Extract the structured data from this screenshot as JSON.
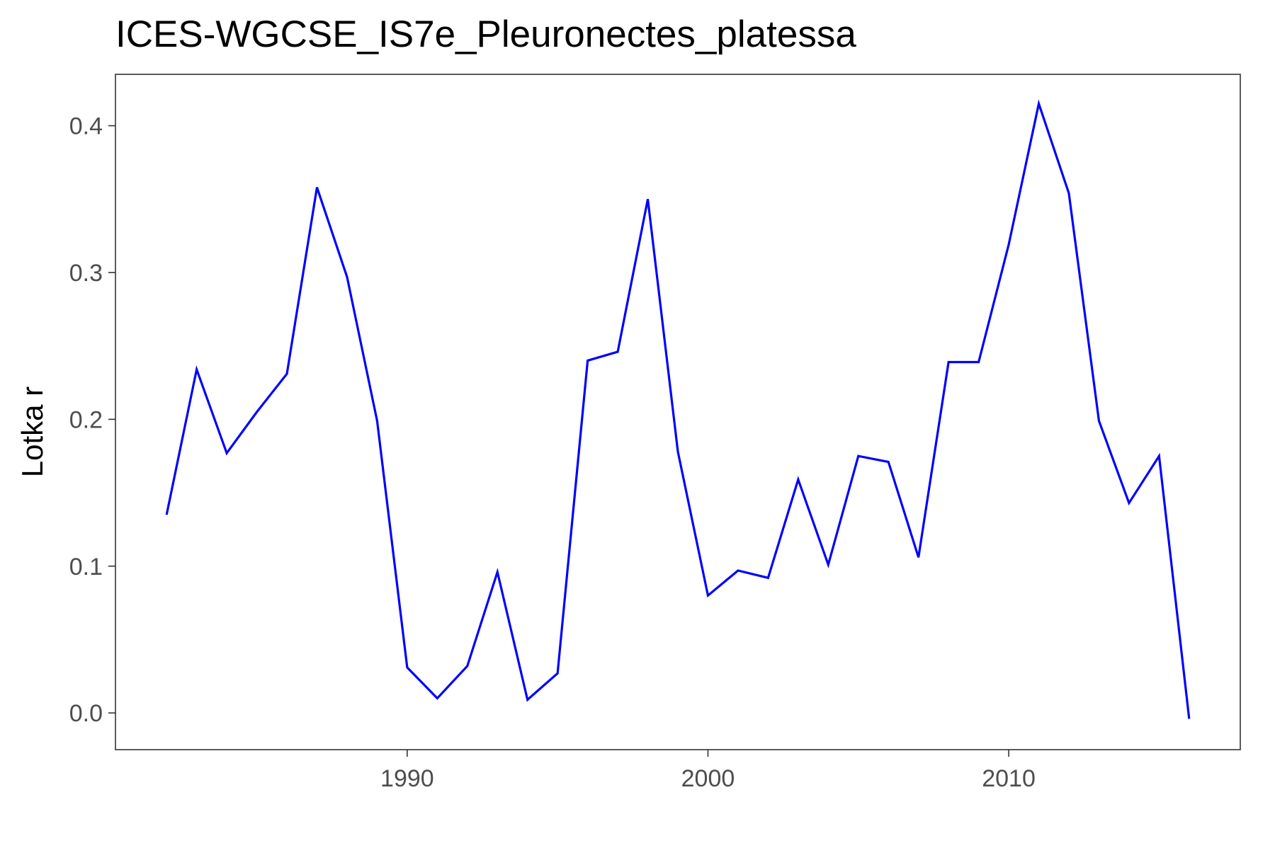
{
  "chart_data": {
    "type": "line",
    "title": "ICES-WGCSE_IS7e_Pleuronectes_platessa",
    "xlabel": "",
    "ylabel": "Lotka r",
    "xlim": [
      1980.3,
      2017.7
    ],
    "ylim": [
      -0.025,
      0.435
    ],
    "x_ticks": [
      1990,
      2000,
      2010
    ],
    "x_tick_labels": [
      "1990",
      "2000",
      "2010"
    ],
    "y_ticks": [
      0.0,
      0.1,
      0.2,
      0.3,
      0.4
    ],
    "y_tick_labels": [
      "0.0",
      "0.1",
      "0.2",
      "0.3",
      "0.4"
    ],
    "grid": false,
    "line_color": "#0000ff",
    "axis_text_color": "#4d4d4d",
    "series": [
      {
        "x": [
          1982,
          1983,
          1984,
          1985,
          1986,
          1987,
          1988,
          1989,
          1990,
          1991,
          1992,
          1993,
          1994,
          1995,
          1996,
          1997,
          1998,
          1999,
          2000,
          2001,
          2002,
          2003,
          2004,
          2005,
          2006,
          2007,
          2008,
          2009,
          2010,
          2011,
          2012,
          2013,
          2014,
          2015,
          2016
        ],
        "values": [
          0.135,
          0.234,
          0.177,
          0.205,
          0.231,
          0.358,
          0.297,
          0.199,
          0.031,
          0.01,
          0.032,
          0.096,
          0.009,
          0.027,
          0.24,
          0.246,
          0.35,
          0.178,
          0.08,
          0.097,
          0.092,
          0.159,
          0.101,
          0.175,
          0.171,
          0.106,
          0.239,
          0.239,
          0.319,
          0.415,
          0.354,
          0.199,
          0.143,
          0.175,
          -0.004
        ]
      }
    ]
  }
}
